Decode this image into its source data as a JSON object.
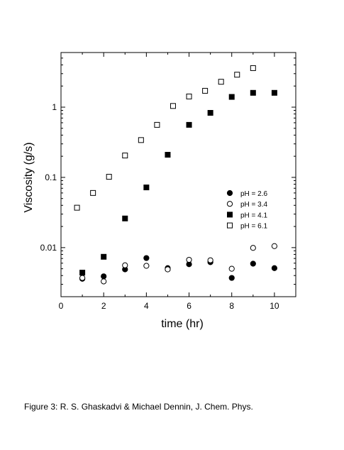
{
  "figure": {
    "caption": "Figure 3: R. S. Ghaskadvi & Michael Dennin, J. Chem. Phys."
  },
  "chart_data": {
    "type": "scatter",
    "xlabel": "time (hr)",
    "ylabel": "Viscosity (g/s)",
    "xlim": [
      0,
      11
    ],
    "ylim": [
      0.002,
      6
    ],
    "y_scale": "log",
    "x_ticks": [
      0,
      2,
      4,
      6,
      8,
      10
    ],
    "y_ticks": [
      {
        "value": 0.01,
        "label": "0.01"
      },
      {
        "value": 0.1,
        "label": "0.1"
      },
      {
        "value": 1,
        "label": "1"
      }
    ],
    "grid": false,
    "legend": "right",
    "series": [
      {
        "name": "pH = 2.6",
        "marker": "filled-circle",
        "x": [
          1,
          2,
          3,
          4,
          5,
          6,
          7,
          8,
          9,
          10
        ],
        "y": [
          0.0036,
          0.0039,
          0.0049,
          0.0071,
          0.0051,
          0.0058,
          0.0062,
          0.0037,
          0.0059,
          0.0051
        ]
      },
      {
        "name": "pH = 3.4",
        "marker": "open-circle",
        "x": [
          1,
          2,
          3,
          4,
          5,
          6,
          7,
          8,
          9,
          10
        ],
        "y": [
          0.0037,
          0.0033,
          0.0056,
          0.0055,
          0.0049,
          0.0067,
          0.0066,
          0.005,
          0.0099,
          0.0105
        ]
      },
      {
        "name": "pH = 4.1",
        "marker": "filled-square",
        "x": [
          1,
          2,
          3,
          4,
          5,
          6,
          7,
          8,
          9,
          10
        ],
        "y": [
          0.0044,
          0.0074,
          0.026,
          0.072,
          0.21,
          0.56,
          0.83,
          1.4,
          1.6,
          1.6
        ]
      },
      {
        "name": "pH = 6.1",
        "marker": "open-square",
        "x": [
          0.75,
          1.5,
          2.25,
          3,
          3.75,
          4.5,
          5.25,
          6,
          6.75,
          7.5,
          8.25,
          9
        ],
        "y": [
          0.037,
          0.06,
          0.102,
          0.205,
          0.34,
          0.56,
          1.04,
          1.42,
          1.71,
          2.3,
          2.9,
          3.6
        ]
      }
    ]
  }
}
